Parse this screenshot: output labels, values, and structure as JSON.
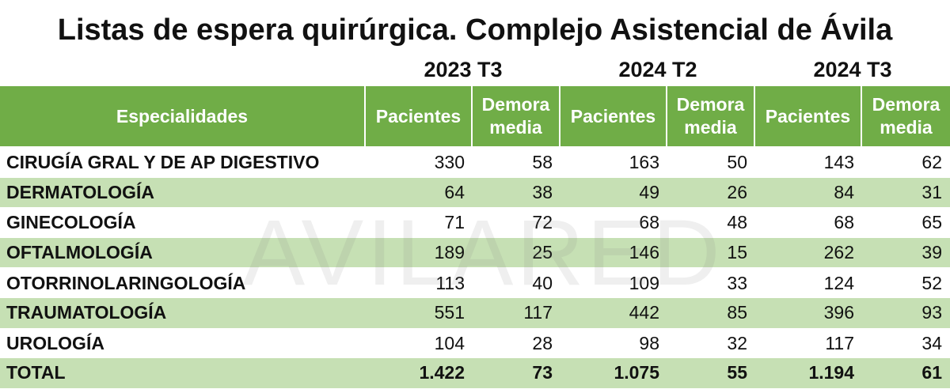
{
  "title": "Listas de espera quirúrgica. Complejo Asistencial de Ávila",
  "watermark": "AVILARED",
  "periods": [
    "2023 T3",
    "2024 T2",
    "2024 T3"
  ],
  "header": {
    "specialties": "Especialidades",
    "patients": "Pacientes",
    "delay_line1": "Demora",
    "delay_line2": "media"
  },
  "chart_data": {
    "type": "table",
    "title": "Listas de espera quirúrgica. Complejo Asistencial de Ávila",
    "columns": [
      "Especialidades",
      "2023 T3 Pacientes",
      "2023 T3 Demora media",
      "2024 T2 Pacientes",
      "2024 T2 Demora media",
      "2024 T3 Pacientes",
      "2024 T3 Demora media"
    ],
    "rows": [
      {
        "name": "CIRUGÍA GRAL Y DE AP DIGESTIVO",
        "values": [
          "330",
          "58",
          "163",
          "50",
          "143",
          "62"
        ]
      },
      {
        "name": "DERMATOLOGÍA",
        "values": [
          "64",
          "38",
          "49",
          "26",
          "84",
          "31"
        ]
      },
      {
        "name": "GINECOLOGÍA",
        "values": [
          "71",
          "72",
          "68",
          "48",
          "68",
          "65"
        ]
      },
      {
        "name": "OFTALMOLOGÍA",
        "values": [
          "189",
          "25",
          "146",
          "15",
          "262",
          "39"
        ]
      },
      {
        "name": "OTORRINOLARINGOLOGÍA",
        "values": [
          "113",
          "40",
          "109",
          "33",
          "124",
          "52"
        ]
      },
      {
        "name": "TRAUMATOLOGÍA",
        "values": [
          "551",
          "117",
          "442",
          "85",
          "396",
          "93"
        ]
      },
      {
        "name": "UROLOGÍA",
        "values": [
          "104",
          "28",
          "98",
          "32",
          "117",
          "34"
        ]
      },
      {
        "name": "TOTAL",
        "values": [
          "1.422",
          "73",
          "1.075",
          "55",
          "1.194",
          "61"
        ]
      }
    ]
  },
  "colors": {
    "header_green": "#70ad47",
    "band_green": "#c6e0b4",
    "text": "#111111"
  }
}
